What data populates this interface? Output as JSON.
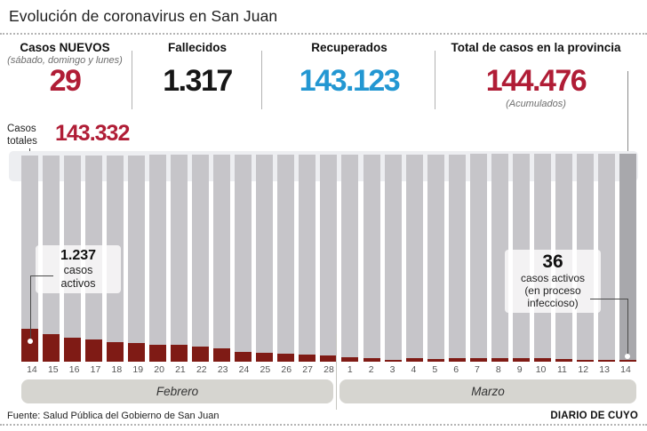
{
  "title": "Evolución de coronavirus en San Juan",
  "colors": {
    "accent_red": "#b01d36",
    "bar_red": "#7f1b15",
    "accent_blue": "#2397d2",
    "text_dark": "#1a1a1a",
    "bar_gray": "#c6c5c9",
    "bar_gray_last": "#a8a8ac",
    "band_bg": "#edeef1",
    "month_band_bg": "#d6d5d0"
  },
  "stats": [
    {
      "label": "Casos NUEVOS",
      "sublabel": "(sábado, domingo y lunes)",
      "value": "29"
    },
    {
      "label": "Fallecidos",
      "value": "1.317"
    },
    {
      "label": "Recuperados",
      "value": "143.123"
    },
    {
      "label": "Total de casos en la provincia",
      "value": "144.476",
      "sublabel": "(Acumulados)"
    }
  ],
  "chart": {
    "totals_label": "Casos totales",
    "totals_value": "143.332",
    "annotation_left": {
      "value": "1.237",
      "lines": [
        "casos",
        "activos"
      ]
    },
    "annotation_right": {
      "value": "36",
      "lines": [
        "casos activos",
        "(en proceso",
        "infeccioso)"
      ]
    }
  },
  "chart_data": {
    "type": "bar",
    "categories": [
      "14",
      "15",
      "16",
      "17",
      "18",
      "19",
      "20",
      "21",
      "22",
      "23",
      "24",
      "25",
      "26",
      "27",
      "28",
      "1",
      "2",
      "3",
      "4",
      "5",
      "6",
      "7",
      "8",
      "9",
      "10",
      "11",
      "12",
      "13",
      "14"
    ],
    "months": [
      {
        "label": "Febrero",
        "span": 15
      },
      {
        "label": "Marzo",
        "span": 14
      }
    ],
    "series": [
      {
        "name": "Casos totales (acumulados)",
        "values": [
          143332,
          143373,
          143414,
          143455,
          143495,
          143536,
          143577,
          143618,
          143659,
          143700,
          143741,
          143781,
          143822,
          143863,
          143904,
          143945,
          143986,
          144027,
          144067,
          144108,
          144149,
          144190,
          144231,
          144272,
          144313,
          144353,
          144394,
          144435,
          144476
        ]
      },
      {
        "name": "Casos activos",
        "values": [
          1237,
          1040,
          900,
          840,
          740,
          700,
          640,
          640,
          570,
          500,
          370,
          330,
          300,
          270,
          230,
          170,
          130,
          70,
          130,
          100,
          120,
          120,
          150,
          150,
          120,
          90,
          70,
          60,
          36
        ]
      }
    ],
    "labeled_values": {
      "casos_totales_inicio": 143332,
      "casos_totales_fin": 144476,
      "casos_activos_inicio": 1237,
      "casos_activos_fin": 36
    },
    "ylim_total": [
      0,
      144476
    ],
    "active_bar_scale_max": 1237,
    "legend_position": "none",
    "grid": false
  },
  "footer": {
    "source": "Fuente: Salud Pública del Gobierno de San Juan",
    "credit": "DIARIO DE CUYO"
  }
}
